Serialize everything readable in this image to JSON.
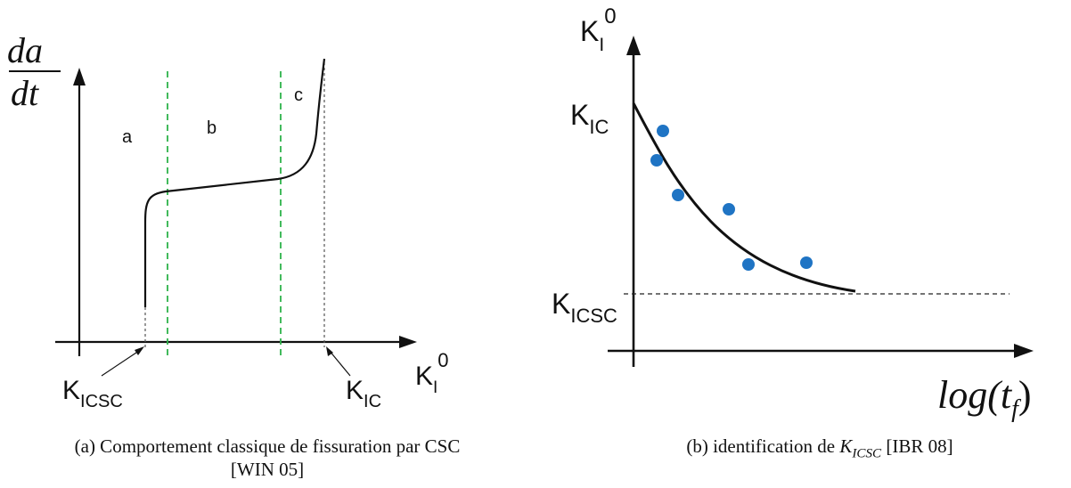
{
  "panel_a": {
    "ylabel_num": "da",
    "ylabel_den": "dt",
    "xlabel": {
      "base": "K",
      "sub": "I",
      "sup": "0"
    },
    "regions": [
      "a",
      "b",
      "c"
    ],
    "threshold_low": {
      "base": "K",
      "sub": "ICSC"
    },
    "threshold_high": {
      "base": "K",
      "sub": "IC"
    },
    "caption_line1": "(a)  Comportement classique de fissuration par CSC",
    "caption_line2": "[WIN 05]"
  },
  "panel_b": {
    "ylabel": {
      "base": "K",
      "sub": "I",
      "sup": "0"
    },
    "xlabel": "log(t_f)",
    "tick_high": {
      "base": "K",
      "sub": "IC"
    },
    "tick_low": {
      "base": "K",
      "sub": "ICSC"
    },
    "caption_prefix": "(b)  identification de",
    "caption_var": {
      "base": "K",
      "sub": "ICSC"
    },
    "caption_suffix": "[IBR 08]"
  },
  "colors": {
    "axis": "#111111",
    "curve": "#111111",
    "region_divider": "#2db34a",
    "reference_line": "#555555",
    "data_point": "#1f74c4"
  },
  "chart_data": [
    {
      "type": "line",
      "title": "",
      "xlabel": "K_I^0",
      "ylabel": "da/dt",
      "regions": [
        "a",
        "b",
        "c"
      ],
      "reference_lines": [
        "K_ICSC",
        "K_IC"
      ],
      "note": "schematic curve, no numeric scale"
    },
    {
      "type": "scatter",
      "title": "",
      "xlabel": "log(t_f)",
      "ylabel": "K_I^0",
      "reference_lines": [
        "K_IC",
        "K_ICSC"
      ],
      "points": [
        [
          0.1,
          0.82
        ],
        [
          0.08,
          0.72
        ],
        [
          0.15,
          0.58
        ],
        [
          0.35,
          0.55
        ],
        [
          0.42,
          0.23
        ],
        [
          0.62,
          0.24
        ]
      ],
      "note": "schematic, decreasing fit curve approaching K_ICSC asymptote"
    }
  ]
}
